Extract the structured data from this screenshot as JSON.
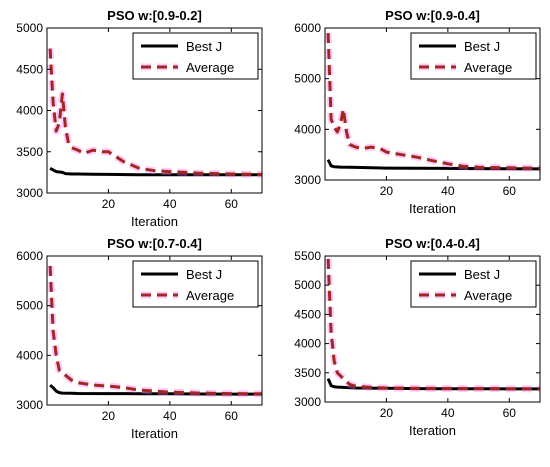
{
  "colors": {
    "best": "#000000",
    "avg": "#a0281e",
    "avg_halo": "#ff66ff"
  },
  "chart_data": [
    {
      "type": "line",
      "title": "PSO w:[0.9-0.2]",
      "xlabel": "Iteration",
      "ylabel": "",
      "xlim": [
        0,
        70
      ],
      "ylim": [
        3000,
        5000
      ],
      "xticks": [
        20,
        40,
        60
      ],
      "yticks": [
        3000,
        3500,
        4000,
        4500,
        5000
      ],
      "legend_position": "top-right",
      "series": [
        {
          "name": "Best J",
          "style": "solid",
          "x": [
            1,
            2,
            3,
            4,
            5,
            6,
            8,
            10,
            15,
            20,
            30,
            40,
            50,
            60,
            70
          ],
          "y": [
            3300,
            3280,
            3260,
            3255,
            3250,
            3235,
            3230,
            3230,
            3228,
            3225,
            3222,
            3220,
            3220,
            3220,
            3220
          ]
        },
        {
          "name": "Average",
          "style": "dashed",
          "x": [
            1,
            2,
            3,
            4,
            5,
            6,
            7,
            8,
            10,
            12,
            15,
            18,
            20,
            25,
            30,
            35,
            40,
            50,
            60,
            70
          ],
          "y": [
            4750,
            4100,
            3750,
            3850,
            4200,
            3800,
            3600,
            3550,
            3520,
            3480,
            3520,
            3500,
            3500,
            3380,
            3300,
            3270,
            3260,
            3240,
            3230,
            3225
          ]
        }
      ]
    },
    {
      "type": "line",
      "title": "PSO w:[0.9-0.4]",
      "xlabel": "Iteration",
      "ylabel": "",
      "xlim": [
        0,
        70
      ],
      "ylim": [
        3000,
        6000
      ],
      "xticks": [
        20,
        40,
        60
      ],
      "yticks": [
        3000,
        4000,
        5000,
        6000
      ],
      "legend_position": "top-right",
      "series": [
        {
          "name": "Best J",
          "style": "solid",
          "x": [
            1,
            2,
            3,
            5,
            8,
            10,
            15,
            20,
            30,
            40,
            50,
            60,
            70
          ],
          "y": [
            3400,
            3280,
            3260,
            3255,
            3250,
            3248,
            3240,
            3235,
            3230,
            3228,
            3225,
            3222,
            3220
          ]
        },
        {
          "name": "Average",
          "style": "dashed",
          "x": [
            1,
            2,
            3,
            4,
            5,
            6,
            7,
            8,
            10,
            12,
            15,
            18,
            20,
            25,
            30,
            35,
            40,
            45,
            50,
            60,
            70
          ],
          "y": [
            5900,
            4200,
            4050,
            3950,
            4100,
            4400,
            3950,
            3700,
            3650,
            3620,
            3650,
            3620,
            3550,
            3500,
            3450,
            3380,
            3320,
            3270,
            3250,
            3240,
            3230
          ]
        }
      ]
    },
    {
      "type": "line",
      "title": "PSO w:[0.7-0.4]",
      "xlabel": "Iteration",
      "ylabel": "",
      "xlim": [
        0,
        70
      ],
      "ylim": [
        3000,
        6000
      ],
      "xticks": [
        20,
        40,
        60
      ],
      "yticks": [
        3000,
        4000,
        5000,
        6000
      ],
      "legend_position": "top-right",
      "series": [
        {
          "name": "Best J",
          "style": "solid",
          "x": [
            1,
            2,
            3,
            4,
            5,
            8,
            10,
            20,
            30,
            40,
            50,
            60,
            70
          ],
          "y": [
            3400,
            3350,
            3280,
            3250,
            3240,
            3235,
            3232,
            3230,
            3228,
            3225,
            3222,
            3220,
            3220
          ]
        },
        {
          "name": "Average",
          "style": "dashed",
          "x": [
            1,
            2,
            3,
            4,
            5,
            6,
            8,
            10,
            15,
            20,
            25,
            30,
            35,
            40,
            50,
            60,
            70
          ],
          "y": [
            5800,
            4500,
            4000,
            3700,
            3650,
            3600,
            3500,
            3450,
            3400,
            3380,
            3350,
            3300,
            3280,
            3260,
            3240,
            3230,
            3225
          ]
        }
      ]
    },
    {
      "type": "line",
      "title": "PSO w:[0.4-0.4]",
      "xlabel": "Iteration",
      "ylabel": "",
      "xlim": [
        0,
        70
      ],
      "ylim": [
        3000,
        5500
      ],
      "xticks": [
        20,
        40,
        60
      ],
      "yticks": [
        3000,
        3500,
        4000,
        4500,
        5000,
        5500
      ],
      "legend_position": "top-right",
      "series": [
        {
          "name": "Best J",
          "style": "solid",
          "x": [
            1,
            2,
            3,
            4,
            6,
            10,
            20,
            30,
            40,
            50,
            60,
            70
          ],
          "y": [
            3400,
            3280,
            3260,
            3255,
            3250,
            3240,
            3235,
            3230,
            3228,
            3226,
            3225,
            3225
          ]
        },
        {
          "name": "Average",
          "style": "dashed",
          "x": [
            1,
            2,
            3,
            4,
            5,
            6,
            8,
            10,
            15,
            20,
            30,
            40,
            50,
            60,
            70
          ],
          "y": [
            5450,
            4200,
            3700,
            3500,
            3450,
            3400,
            3300,
            3270,
            3250,
            3240,
            3235,
            3232,
            3230,
            3228,
            3225
          ]
        }
      ]
    }
  ]
}
